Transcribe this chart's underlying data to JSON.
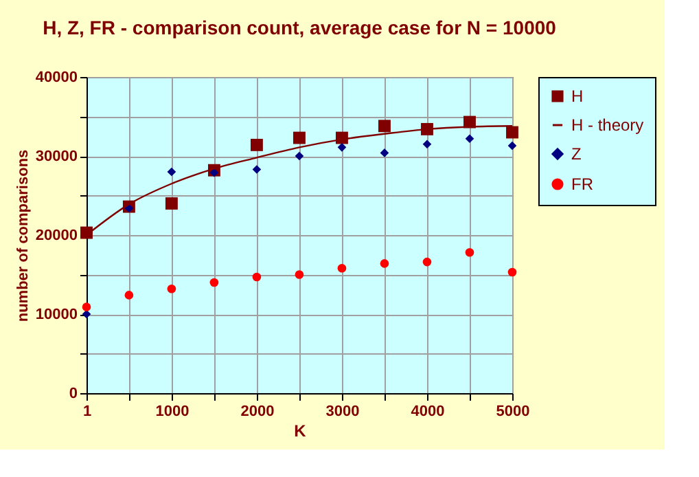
{
  "chart_data": {
    "type": "scatter",
    "title": "H, Z, FR - comparison count, average case for N = 10000",
    "xlabel": "K",
    "ylabel": "number of comparisons",
    "x": [
      1,
      500,
      1000,
      1500,
      2000,
      2500,
      3000,
      3500,
      4000,
      4500,
      5000
    ],
    "series": [
      {
        "name": "H",
        "marker": "square",
        "color": "#800000",
        "values": [
          20300,
          23600,
          24000,
          28200,
          31400,
          32300,
          32300,
          33800,
          33400,
          34300,
          33000
        ]
      },
      {
        "name": "H - theory",
        "type": "line",
        "marker": "none",
        "color": "#800000",
        "values": [
          20000,
          23900,
          26500,
          28400,
          29800,
          31100,
          32100,
          32800,
          33400,
          33700,
          33800
        ]
      },
      {
        "name": "Z",
        "marker": "diamond",
        "color": "#000080",
        "values": [
          10000,
          23400,
          28000,
          27900,
          28300,
          30000,
          31100,
          30400,
          31500,
          32200,
          31300
        ]
      },
      {
        "name": "FR",
        "marker": "circle",
        "color": "#ff0000",
        "values": [
          10900,
          12400,
          13200,
          14000,
          14700,
          15000,
          15800,
          16400,
          16600,
          17800,
          15300
        ]
      }
    ],
    "xlim": [
      1,
      5000
    ],
    "xticks": [
      1,
      {
        "value": 500,
        "label": null
      },
      1000,
      {
        "value": 1500,
        "label": null
      },
      2000,
      {
        "value": 2500,
        "label": null
      },
      3000,
      {
        "value": 3500,
        "label": null
      },
      4000,
      {
        "value": 4500,
        "label": null
      },
      5000
    ],
    "ylim": [
      0,
      40000
    ],
    "yticks": [
      0,
      {
        "value": 5000,
        "label": null
      },
      10000,
      {
        "value": 15000,
        "label": null
      },
      20000,
      {
        "value": 25000,
        "label": null
      },
      30000,
      {
        "value": 35000,
        "label": null
      },
      40000
    ],
    "grid": true,
    "legend": "right"
  }
}
